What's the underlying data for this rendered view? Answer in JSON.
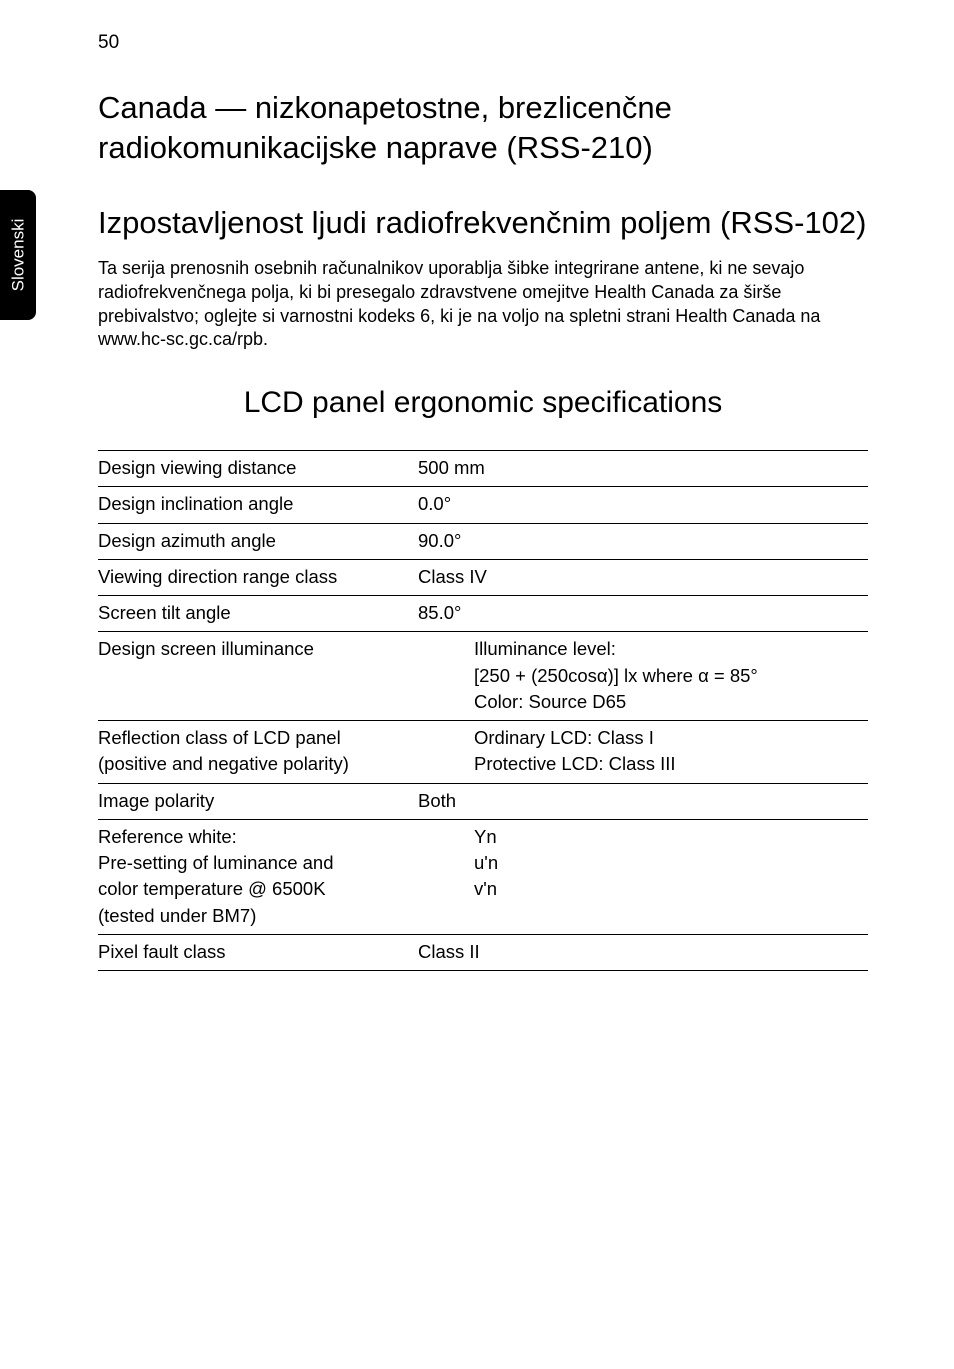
{
  "page_number": "50",
  "side_tab": "Slovenski",
  "heading1": "Canada — nizkonapetostne, brezlicenčne radiokomunikacijske naprave (RSS-210)",
  "heading2": "Izpostavljenost ljudi radiofrekvenčnim poljem (RSS-102)",
  "paragraph": "Ta serija prenosnih osebnih računalnikov uporablja šibke integrirane antene, ki ne sevajo radiofrekvenčnega polja, ki bi presegalo zdravstvene omejitve Health Canada za širše prebivalstvo; oglejte si varnostni kodeks 6, ki je na voljo na spletni strani Health Canada na www.hc-sc.gc.ca/rpb.",
  "section_title": "LCD panel ergonomic specifications",
  "table_font_family": "Segoe UI",
  "colors": {
    "text": "#000000",
    "background": "#ffffff",
    "tab_bg": "#000000",
    "tab_text": "#ffffff",
    "rule": "#000000"
  },
  "rows": [
    {
      "label": "Design viewing distance",
      "value": "500 mm"
    },
    {
      "label": "Design inclination angle",
      "value": "0.0°"
    },
    {
      "label": "Design azimuth angle",
      "value": "90.0°"
    },
    {
      "label": "Viewing direction range class",
      "value": "Class IV"
    },
    {
      "label": "Screen tilt angle",
      "value": "85.0°"
    }
  ],
  "illuminance": {
    "label": "Design screen illuminance",
    "lines": [
      "Illuminance level:",
      "[250 + (250cosα)] lx where α = 85°",
      "Color: Source D65"
    ]
  },
  "reflection": {
    "label_line1": "Reflection class of LCD panel",
    "label_line2": "(positive and negative polarity)",
    "lines": [
      "Ordinary LCD: Class I",
      "Protective LCD: Class III"
    ]
  },
  "image_polarity": {
    "label": "Image polarity",
    "value": "Both"
  },
  "reference_white": {
    "label_lines": [
      "Reference white:",
      "Pre-setting of luminance and",
      "color temperature @ 6500K",
      "(tested under BM7)"
    ],
    "value_lines": [
      "Yn",
      "u'n",
      "v'n"
    ]
  },
  "pixel_fault": {
    "label": "Pixel fault class",
    "value": "Class II"
  }
}
